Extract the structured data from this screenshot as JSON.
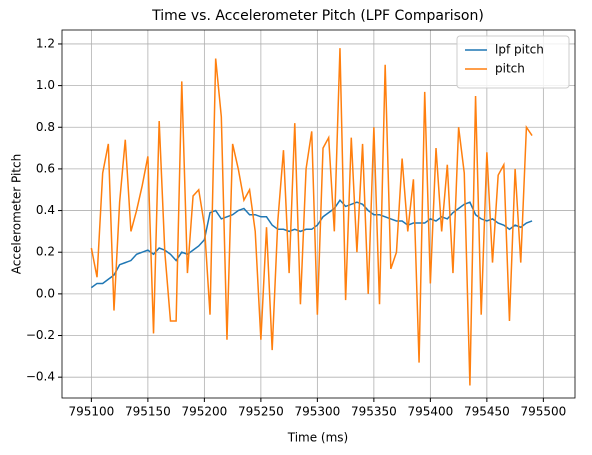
{
  "chart_data": {
    "type": "line",
    "title": "Time vs. Accelerometer Pitch (LPF Comparison)",
    "x_label": "Time (ms)",
    "y_label": "Accelerometer Pitch",
    "x": [
      795100,
      795105,
      795110,
      795115,
      795120,
      795125,
      795130,
      795135,
      795140,
      795145,
      795150,
      795155,
      795160,
      795165,
      795170,
      795175,
      795180,
      795185,
      795190,
      795195,
      795200,
      795205,
      795210,
      795215,
      795220,
      795225,
      795230,
      795235,
      795240,
      795245,
      795250,
      795255,
      795260,
      795265,
      795270,
      795275,
      795280,
      795285,
      795290,
      795295,
      795300,
      795305,
      795310,
      795315,
      795320,
      795325,
      795330,
      795335,
      795340,
      795345,
      795350,
      795355,
      795360,
      795365,
      795370,
      795375,
      795380,
      795385,
      795390,
      795395,
      795400,
      795405,
      795410,
      795415,
      795420,
      795425,
      795430,
      795435,
      795440,
      795445,
      795450,
      795455,
      795460,
      795465,
      795470,
      795475,
      795480,
      795485,
      795490
    ],
    "series": [
      {
        "name": "lpf pitch",
        "color": "#1f77b4",
        "values": [
          0.03,
          0.05,
          0.05,
          0.07,
          0.09,
          0.14,
          0.15,
          0.16,
          0.19,
          0.2,
          0.21,
          0.19,
          0.22,
          0.21,
          0.19,
          0.16,
          0.2,
          0.19,
          0.21,
          0.23,
          0.26,
          0.39,
          0.4,
          0.36,
          0.37,
          0.38,
          0.4,
          0.41,
          0.38,
          0.38,
          0.37,
          0.37,
          0.33,
          0.31,
          0.31,
          0.3,
          0.31,
          0.3,
          0.31,
          0.31,
          0.33,
          0.37,
          0.39,
          0.41,
          0.45,
          0.42,
          0.43,
          0.44,
          0.43,
          0.4,
          0.38,
          0.38,
          0.37,
          0.36,
          0.35,
          0.35,
          0.33,
          0.34,
          0.34,
          0.34,
          0.36,
          0.35,
          0.37,
          0.36,
          0.39,
          0.41,
          0.43,
          0.44,
          0.38,
          0.36,
          0.35,
          0.36,
          0.34,
          0.33,
          0.31,
          0.33,
          0.32,
          0.34,
          0.35
        ]
      },
      {
        "name": "pitch",
        "color": "#ff7f0e",
        "values": [
          0.22,
          0.08,
          0.58,
          0.72,
          -0.08,
          0.44,
          0.74,
          0.3,
          0.4,
          0.52,
          0.66,
          -0.19,
          0.83,
          0.2,
          -0.13,
          -0.13,
          1.02,
          0.1,
          0.47,
          0.5,
          0.33,
          -0.1,
          1.13,
          0.85,
          -0.22,
          0.72,
          0.6,
          0.45,
          0.5,
          0.3,
          -0.22,
          0.32,
          -0.27,
          0.35,
          0.69,
          0.1,
          0.82,
          -0.05,
          0.6,
          0.78,
          -0.1,
          0.7,
          0.75,
          0.3,
          1.18,
          -0.03,
          0.75,
          0.2,
          0.72,
          0.0,
          0.8,
          -0.05,
          1.1,
          0.12,
          0.2,
          0.65,
          0.3,
          0.55,
          -0.33,
          0.97,
          0.05,
          0.7,
          0.3,
          0.62,
          0.1,
          0.8,
          0.58,
          -0.44,
          0.95,
          -0.1,
          0.68,
          0.15,
          0.57,
          0.62,
          -0.13,
          0.6,
          0.15,
          0.8,
          0.76
        ]
      }
    ],
    "xlim": [
      795074,
      795528
    ],
    "ylim": [
      -0.5,
      1.267
    ],
    "xticks": [
      795100,
      795150,
      795200,
      795250,
      795300,
      795350,
      795400,
      795450,
      795500
    ],
    "yticks": [
      {
        "value": -0.4,
        "label": "−0.4"
      },
      {
        "value": -0.2,
        "label": "−0.2"
      },
      {
        "value": 0,
        "label": "0.0"
      },
      0.2,
      0.4,
      0.6,
      0.8,
      {
        "value": 1,
        "label": "1.0"
      },
      1.2
    ],
    "grid": true,
    "legend": "upper right"
  }
}
